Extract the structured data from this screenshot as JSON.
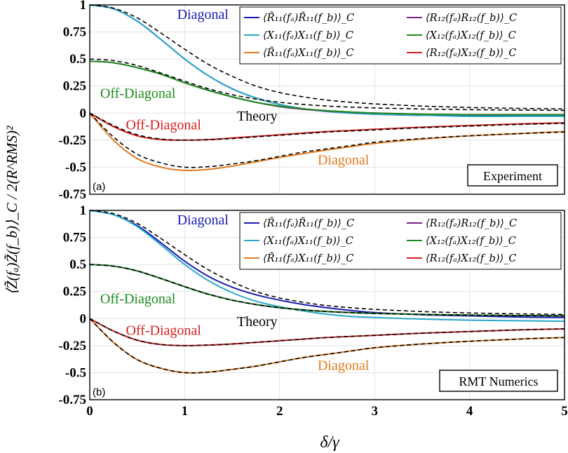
{
  "chart_data": [
    {
      "type": "line",
      "panel_label": "(a)",
      "box_label": "Experiment",
      "xlim": [
        0,
        5
      ],
      "ylim": [
        -0.75,
        1
      ],
      "x_ticks": [
        "0",
        "1",
        "2",
        "3",
        "4",
        "5"
      ],
      "y_ticks": [
        "1",
        "0.75",
        "0.5",
        "0.25",
        "0",
        "-0.25",
        "-0.5",
        "-0.75"
      ],
      "grid": true,
      "legend_position": "top-right",
      "x": [
        0,
        0.25,
        0.5,
        0.75,
        1,
        1.25,
        1.5,
        1.75,
        2,
        2.25,
        2.5,
        2.75,
        3,
        3.5,
        4,
        4.5,
        5
      ],
      "series": [
        {
          "name": "⟨R̃₁₁(fₐ)R̃₁₁(f_b)⟩_C",
          "color": "#1a1ab3",
          "values": [
            1.0,
            0.965,
            0.85,
            0.68,
            0.5,
            0.345,
            0.225,
            0.14,
            0.08,
            0.04,
            0.015,
            0.0,
            -0.01,
            -0.02,
            -0.02,
            -0.02,
            -0.02
          ]
        },
        {
          "name": "⟨X₁₁(fₐ)X₁₁(f_b)⟩_C",
          "color": "#2aa8c8",
          "values": [
            1.0,
            0.965,
            0.85,
            0.68,
            0.5,
            0.345,
            0.225,
            0.14,
            0.08,
            0.04,
            0.015,
            0.0,
            -0.01,
            -0.02,
            -0.03,
            -0.03,
            -0.03
          ]
        },
        {
          "name": "⟨R̃₁₁(fₐ)X₁₁(f_b)⟩_C",
          "color": "#e07b20",
          "values": [
            0,
            -0.25,
            -0.42,
            -0.5,
            -0.53,
            -0.52,
            -0.49,
            -0.45,
            -0.41,
            -0.375,
            -0.34,
            -0.31,
            -0.28,
            -0.24,
            -0.21,
            -0.19,
            -0.17
          ]
        },
        {
          "name": "⟨R₁₂(fₐ)R₁₂(f_b)⟩_C",
          "color": "#7a1f8c",
          "values": [
            0.48,
            0.465,
            0.42,
            0.36,
            0.28,
            0.21,
            0.15,
            0.1,
            0.06,
            0.035,
            0.02,
            0.008,
            0.0,
            -0.01,
            -0.015,
            -0.015,
            -0.015
          ]
        },
        {
          "name": "⟨X₁₂(fₐ)X₁₂(f_b)⟩_C",
          "color": "#1a8a1a",
          "values": [
            0.48,
            0.465,
            0.42,
            0.36,
            0.28,
            0.21,
            0.15,
            0.1,
            0.065,
            0.04,
            0.022,
            0.01,
            0.0,
            -0.01,
            -0.015,
            -0.015,
            -0.015
          ]
        },
        {
          "name": "⟨R₁₂(fₐ)X₁₂(f_b)⟩_C",
          "color": "#d42020",
          "values": [
            0,
            -0.125,
            -0.21,
            -0.245,
            -0.25,
            -0.245,
            -0.23,
            -0.215,
            -0.2,
            -0.185,
            -0.17,
            -0.16,
            -0.15,
            -0.13,
            -0.115,
            -0.1,
            -0.09
          ]
        }
      ],
      "theory": [
        [
          1.0,
          0.97,
          0.88,
          0.74,
          0.59,
          0.45,
          0.34,
          0.25,
          0.19,
          0.15,
          0.12,
          0.1,
          0.085,
          0.065,
          0.052,
          0.044,
          0.038
        ],
        [
          0.5,
          0.485,
          0.44,
          0.37,
          0.295,
          0.225,
          0.17,
          0.13,
          0.1,
          0.08,
          0.065,
          0.055,
          0.048,
          0.038,
          0.032,
          0.028,
          0.025
        ],
        [
          0,
          -0.22,
          -0.38,
          -0.46,
          -0.5,
          -0.495,
          -0.47,
          -0.44,
          -0.4,
          -0.36,
          -0.33,
          -0.3,
          -0.27,
          -0.235,
          -0.21,
          -0.19,
          -0.175
        ],
        [
          0,
          -0.115,
          -0.2,
          -0.24,
          -0.25,
          -0.245,
          -0.235,
          -0.22,
          -0.205,
          -0.19,
          -0.175,
          -0.165,
          -0.155,
          -0.135,
          -0.12,
          -0.105,
          -0.095
        ]
      ],
      "annotations": [
        {
          "text": "Diagonal",
          "color": "#1a1ab3",
          "x": 0.92,
          "y": 0.87
        },
        {
          "text": "Off-Diagonal",
          "color": "#1a8a1a",
          "x": 0.11,
          "y": 0.14
        },
        {
          "text": "Theory",
          "color": "#000000",
          "x": 1.55,
          "y": -0.07
        },
        {
          "text": "Off-Diagonal",
          "color": "#d42020",
          "x": 0.38,
          "y": -0.15
        },
        {
          "text": "Diagonal",
          "color": "#e07b20",
          "x": 2.4,
          "y": -0.475
        }
      ]
    },
    {
      "type": "line",
      "panel_label": "(b)",
      "box_label": "RMT Numerics",
      "xlim": [
        0,
        5
      ],
      "ylim": [
        -0.75,
        1
      ],
      "x_ticks": [
        "0",
        "1",
        "2",
        "3",
        "4",
        "5"
      ],
      "y_ticks": [
        "1",
        "0.75",
        "0.5",
        "0.25",
        "0",
        "-0.25",
        "-0.5",
        "-0.75"
      ],
      "grid": true,
      "legend_position": "top-right",
      "xlabel": "δ/γ",
      "x": [
        0,
        0.25,
        0.5,
        0.75,
        1,
        1.25,
        1.5,
        1.75,
        2,
        2.25,
        2.5,
        2.75,
        3,
        3.5,
        4,
        4.5,
        5
      ],
      "series": [
        {
          "name": "⟨R̃₁₁(fₐ)R̃₁₁(f_b)⟩_C",
          "color": "#1a1ab3",
          "values": [
            1.0,
            0.96,
            0.86,
            0.7,
            0.53,
            0.39,
            0.29,
            0.22,
            0.17,
            0.13,
            0.1,
            0.075,
            0.055,
            0.035,
            0.025,
            0.015,
            0.01
          ]
        },
        {
          "name": "⟨X₁₁(fₐ)X₁₁(f_b)⟩_C",
          "color": "#2aa8c8",
          "values": [
            1.0,
            0.96,
            0.85,
            0.68,
            0.5,
            0.35,
            0.24,
            0.16,
            0.11,
            0.07,
            0.04,
            0.02,
            0.01,
            -0.005,
            -0.015,
            -0.02,
            -0.025
          ]
        },
        {
          "name": "⟨R̃₁₁(fₐ)X₁₁(f_b)⟩_C",
          "color": "#e07b20",
          "values": [
            0,
            -0.22,
            -0.38,
            -0.46,
            -0.5,
            -0.495,
            -0.47,
            -0.44,
            -0.4,
            -0.36,
            -0.33,
            -0.3,
            -0.27,
            -0.235,
            -0.21,
            -0.19,
            -0.175
          ]
        },
        {
          "name": "⟨R₁₂(fₐ)R₁₂(f_b)⟩_C",
          "color": "#7a1f8c",
          "values": [
            0.5,
            0.485,
            0.44,
            0.37,
            0.295,
            0.225,
            0.17,
            0.13,
            0.1,
            0.08,
            0.065,
            0.055,
            0.048,
            0.038,
            0.032,
            0.028,
            0.025
          ]
        },
        {
          "name": "⟨X₁₂(fₐ)X₁₂(f_b)⟩_C",
          "color": "#1a8a1a",
          "values": [
            0.5,
            0.485,
            0.44,
            0.37,
            0.295,
            0.225,
            0.17,
            0.13,
            0.1,
            0.08,
            0.065,
            0.055,
            0.048,
            0.038,
            0.032,
            0.028,
            0.025
          ]
        },
        {
          "name": "⟨R₁₂(fₐ)X₁₂(f_b)⟩_C",
          "color": "#d42020",
          "values": [
            0,
            -0.115,
            -0.2,
            -0.24,
            -0.25,
            -0.245,
            -0.235,
            -0.22,
            -0.205,
            -0.19,
            -0.175,
            -0.165,
            -0.155,
            -0.135,
            -0.12,
            -0.105,
            -0.095
          ]
        }
      ],
      "theory": [
        [
          1.0,
          0.97,
          0.88,
          0.74,
          0.59,
          0.45,
          0.34,
          0.25,
          0.19,
          0.15,
          0.12,
          0.1,
          0.085,
          0.065,
          0.052,
          0.044,
          0.038
        ],
        [
          0.5,
          0.485,
          0.44,
          0.37,
          0.295,
          0.225,
          0.17,
          0.13,
          0.1,
          0.08,
          0.065,
          0.055,
          0.048,
          0.038,
          0.032,
          0.028,
          0.025
        ],
        [
          0,
          -0.22,
          -0.38,
          -0.46,
          -0.5,
          -0.495,
          -0.47,
          -0.44,
          -0.4,
          -0.36,
          -0.33,
          -0.3,
          -0.27,
          -0.235,
          -0.21,
          -0.19,
          -0.175
        ],
        [
          0,
          -0.115,
          -0.2,
          -0.24,
          -0.25,
          -0.245,
          -0.235,
          -0.22,
          -0.205,
          -0.19,
          -0.175,
          -0.165,
          -0.155,
          -0.135,
          -0.12,
          -0.105,
          -0.095
        ]
      ],
      "annotations": [
        {
          "text": "Diagonal",
          "color": "#1a1ab3",
          "x": 0.92,
          "y": 0.87
        },
        {
          "text": "Off-Diagonal",
          "color": "#1a8a1a",
          "x": 0.11,
          "y": 0.14
        },
        {
          "text": "Theory",
          "color": "#000000",
          "x": 1.55,
          "y": -0.07
        },
        {
          "text": "Off-Diagonal",
          "color": "#d42020",
          "x": 0.38,
          "y": -0.15
        },
        {
          "text": "Diagonal",
          "color": "#e07b20",
          "x": 2.4,
          "y": -0.475
        }
      ]
    }
  ],
  "shared_ylabel": "⟨Z̃(fₐ)Z̃(f_b)⟩_C / 2(R^RMS)²",
  "theory_style": {
    "color": "#000000",
    "dash": "dashed"
  }
}
